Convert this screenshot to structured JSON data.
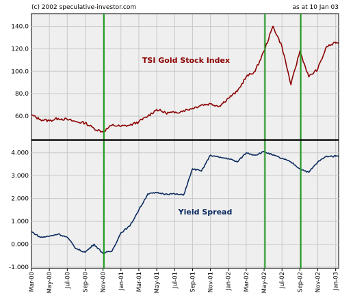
{
  "header": {
    "copyright": "(c) 2002 speculative-investor.com",
    "as_at": "as at 10 Jan 03"
  },
  "colors": {
    "background": "#ffffff",
    "plot_bg": "#efefef",
    "gold_series": "#8b0000",
    "spread_series": "#0a2a5e",
    "vertical_markers": "#1f9b1f",
    "grid": "#c8c8c8",
    "divider": "#000000"
  },
  "chart_data": [
    {
      "type": "line",
      "title": "",
      "series": [
        {
          "name": "TSI Gold Stock Index",
          "x": [
            "2000-03",
            "2000-04",
            "2000-05",
            "2000-06",
            "2000-07",
            "2000-08",
            "2000-09",
            "2000-10",
            "2000-11",
            "2000-12",
            "2001-01",
            "2001-02",
            "2001-03",
            "2001-04",
            "2001-05",
            "2001-06",
            "2001-07",
            "2001-08",
            "2001-09",
            "2001-10",
            "2001-11",
            "2001-12",
            "2002-01",
            "2002-02",
            "2002-03",
            "2002-04",
            "2002-05",
            "2002-06",
            "2002-07",
            "2002-08",
            "2002-09",
            "2002-10",
            "2002-11",
            "2002-12",
            "2003-01"
          ],
          "values": [
            61,
            57,
            56,
            58,
            57,
            55,
            54,
            49,
            46,
            52,
            51,
            52,
            55,
            60,
            66,
            63,
            63,
            65,
            67,
            70,
            71,
            69,
            76,
            82,
            95,
            100,
            118,
            140,
            122,
            88,
            118,
            95,
            102,
            122,
            125
          ]
        }
      ],
      "ylim": [
        40,
        150
      ],
      "yticks": [
        "140.0",
        "120.0",
        "100.0",
        "80.0",
        "60.0"
      ],
      "grid": true
    },
    {
      "type": "line",
      "title": "",
      "series": [
        {
          "name": "Yield Spread",
          "x": [
            "2000-03",
            "2000-04",
            "2000-05",
            "2000-06",
            "2000-07",
            "2000-08",
            "2000-09",
            "2000-10",
            "2000-11",
            "2000-12",
            "2001-01",
            "2001-02",
            "2001-03",
            "2001-04",
            "2001-05",
            "2001-06",
            "2001-07",
            "2001-08",
            "2001-09",
            "2001-10",
            "2001-11",
            "2001-12",
            "2002-01",
            "2002-02",
            "2002-03",
            "2002-04",
            "2002-05",
            "2002-06",
            "2002-07",
            "2002-08",
            "2002-09",
            "2002-10",
            "2002-11",
            "2002-12",
            "2003-01"
          ],
          "values": [
            0.55,
            0.3,
            0.35,
            0.45,
            0.3,
            -0.2,
            -0.35,
            0.0,
            -0.4,
            -0.3,
            0.5,
            0.8,
            1.5,
            2.2,
            2.25,
            2.2,
            2.2,
            2.15,
            3.3,
            3.2,
            3.9,
            3.8,
            3.75,
            3.6,
            4.0,
            3.9,
            4.05,
            3.9,
            3.75,
            3.6,
            3.3,
            3.15,
            3.6,
            3.85,
            3.85
          ]
        }
      ],
      "ylim": [
        -1.0,
        4.5
      ],
      "yticks": [
        "4.000",
        "3.000",
        "2.000",
        "1.000",
        "0.000",
        "-1.000"
      ],
      "grid": true
    }
  ],
  "x_axis": {
    "ticks": [
      "Mar-00",
      "May-00",
      "Jul-00",
      "Sep-00",
      "Nov-00",
      "Jan-01",
      "Mar-01",
      "May-01",
      "Jul-01",
      "Sep-01",
      "Nov-01",
      "Jan-02",
      "Mar-02",
      "May-02",
      "Jul-02",
      "Sep-02",
      "Nov-02",
      "Jan-03"
    ]
  },
  "vertical_markers": [
    "2000-11",
    "2002-05",
    "2002-09"
  ]
}
